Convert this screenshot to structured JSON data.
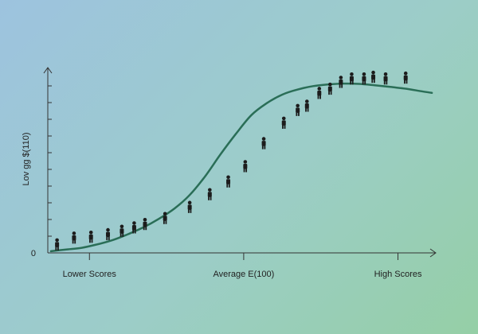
{
  "chart_data": {
    "type": "line",
    "title": "",
    "ylabel": "Lov gg $(110)",
    "y_zero_label": "0",
    "x_tick_labels": [
      "Lower Scores",
      "Average E(100)",
      "High Scores"
    ],
    "x_tick_values": [
      0,
      100,
      200
    ],
    "xlim": [
      -27,
      224
    ],
    "ylim": [
      0,
      100
    ],
    "grid": false,
    "legend": "none",
    "curve_color": "#2a6e57",
    "figure_color": "#1c1c1c",
    "series": [
      {
        "x": [
          -25,
          -15,
          -5,
          5,
          15,
          25,
          35,
          45,
          55,
          65,
          75,
          85,
          95,
          105,
          115,
          125,
          135,
          145,
          155,
          165,
          175,
          185,
          195,
          205,
          215,
          222
        ],
        "y": [
          1,
          2,
          3,
          5,
          7.5,
          11,
          15,
          20,
          26,
          34,
          45,
          58,
          70,
          81,
          88,
          93,
          96,
          98,
          99,
          99.5,
          99.3,
          98.5,
          97.5,
          96.5,
          95,
          94
        ]
      }
    ],
    "people": {
      "x": [
        -21,
        -10,
        1,
        12,
        21,
        29,
        36,
        49,
        65,
        78,
        90,
        101,
        113,
        126,
        135,
        141,
        149,
        156,
        163,
        170,
        178,
        184,
        192,
        205
      ],
      "y": [
        0.5,
        4.5,
        5,
        6.5,
        8.5,
        10.5,
        12.5,
        16,
        22.5,
        30,
        37.5,
        46.5,
        60,
        72,
        79.5,
        82,
        89.5,
        92,
        96,
        98,
        98,
        99,
        98,
        98.5
      ]
    }
  }
}
